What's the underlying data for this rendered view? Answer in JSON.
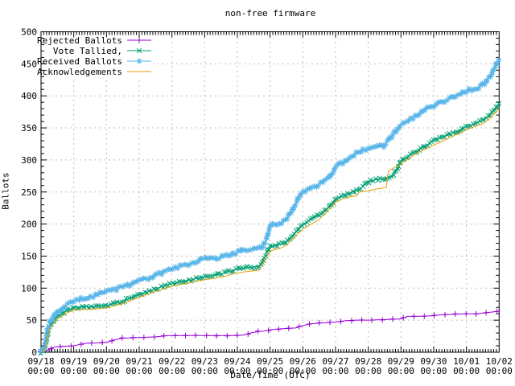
{
  "chart_data": {
    "type": "line",
    "title": "non-free firmware",
    "xlabel": "Date/Time (UTC)",
    "ylabel": "Ballots",
    "ylim": [
      0,
      500
    ],
    "y_tick_step": 50,
    "grid": true,
    "legend_position": "top-left",
    "x_unit": "days since first tick (one tick per day)",
    "x_ticks": [
      {
        "date": "09/18",
        "time": "00:00"
      },
      {
        "date": "09/19",
        "time": "00:00"
      },
      {
        "date": "09/20",
        "time": "00:00"
      },
      {
        "date": "09/21",
        "time": "00:00"
      },
      {
        "date": "09/22",
        "time": "00:00"
      },
      {
        "date": "09/23",
        "time": "00:00"
      },
      {
        "date": "09/24",
        "time": "00:00"
      },
      {
        "date": "09/25",
        "time": "00:00"
      },
      {
        "date": "09/26",
        "time": "00:00"
      },
      {
        "date": "09/27",
        "time": "00:00"
      },
      {
        "date": "09/28",
        "time": "00:00"
      },
      {
        "date": "09/29",
        "time": "00:00"
      },
      {
        "date": "09/30",
        "time": "00:00"
      },
      {
        "date": "10/01",
        "time": "00:00"
      },
      {
        "date": "10/02",
        "time": "00:00"
      }
    ],
    "series": [
      {
        "name": "Rejected Ballots",
        "color": "#9400d3",
        "marker": "plus",
        "points": [
          [
            0,
            0
          ],
          [
            0.15,
            1
          ],
          [
            0.25,
            5
          ],
          [
            0.4,
            8
          ],
          [
            0.6,
            9
          ],
          [
            1,
            10
          ],
          [
            1.1,
            11
          ],
          [
            1.25,
            13
          ],
          [
            1.4,
            14
          ],
          [
            2,
            15
          ],
          [
            2.1,
            17
          ],
          [
            2.3,
            20
          ],
          [
            2.5,
            22
          ],
          [
            3,
            23
          ],
          [
            3.5,
            24
          ],
          [
            3.7,
            25
          ],
          [
            3.95,
            26
          ],
          [
            5,
            26
          ],
          [
            6,
            26
          ],
          [
            6.2,
            27
          ],
          [
            6.4,
            30
          ],
          [
            6.6,
            32
          ],
          [
            6.8,
            33
          ],
          [
            7,
            35
          ],
          [
            7.2,
            36
          ],
          [
            7.5,
            37
          ],
          [
            7.8,
            38
          ],
          [
            7.95,
            41
          ],
          [
            8.05,
            42
          ],
          [
            8.2,
            44
          ],
          [
            8.4,
            45
          ],
          [
            9,
            47
          ],
          [
            9.3,
            49
          ],
          [
            9.6,
            50
          ],
          [
            10,
            50
          ],
          [
            10.5,
            51
          ],
          [
            11,
            52
          ],
          [
            11.1,
            54
          ],
          [
            11.2,
            56
          ],
          [
            11.5,
            56
          ],
          [
            12,
            57
          ],
          [
            12.15,
            58
          ],
          [
            12.5,
            59
          ],
          [
            13,
            60
          ],
          [
            13.3,
            60
          ],
          [
            13.5,
            61
          ],
          [
            13.65,
            62
          ],
          [
            14,
            64
          ]
        ]
      },
      {
        "name": "Vote Tallied,",
        "color": "#009e73",
        "marker": "cross",
        "points": [
          [
            0,
            0
          ],
          [
            0.1,
            4
          ],
          [
            0.25,
            40
          ],
          [
            0.5,
            56
          ],
          [
            0.75,
            64
          ],
          [
            1,
            70
          ],
          [
            1.5,
            71
          ],
          [
            2,
            73
          ],
          [
            2.25,
            76
          ],
          [
            2.5,
            80
          ],
          [
            2.75,
            85
          ],
          [
            3,
            90
          ],
          [
            3.25,
            94
          ],
          [
            3.5,
            99
          ],
          [
            3.75,
            103
          ],
          [
            4,
            107
          ],
          [
            4.25,
            110
          ],
          [
            4.5,
            112
          ],
          [
            4.75,
            115
          ],
          [
            5,
            118
          ],
          [
            5.25,
            120
          ],
          [
            5.5,
            122
          ],
          [
            5.75,
            126
          ],
          [
            6,
            130
          ],
          [
            6.3,
            132
          ],
          [
            6.65,
            134
          ],
          [
            6.8,
            145
          ],
          [
            7,
            165
          ],
          [
            7.3,
            168
          ],
          [
            7.5,
            172
          ],
          [
            7.75,
            186
          ],
          [
            8,
            200
          ],
          [
            8.25,
            207
          ],
          [
            8.5,
            214
          ],
          [
            8.75,
            224
          ],
          [
            9,
            238
          ],
          [
            9.25,
            244
          ],
          [
            9.5,
            250
          ],
          [
            9.75,
            255
          ],
          [
            10,
            266
          ],
          [
            10.2,
            269
          ],
          [
            10.5,
            271
          ],
          [
            10.75,
            276
          ],
          [
            10.9,
            288
          ],
          [
            11,
            298
          ],
          [
            11.25,
            307
          ],
          [
            11.5,
            314
          ],
          [
            11.75,
            322
          ],
          [
            12,
            330
          ],
          [
            12.25,
            336
          ],
          [
            12.5,
            340
          ],
          [
            12.75,
            345
          ],
          [
            13,
            352
          ],
          [
            13.25,
            356
          ],
          [
            13.5,
            362
          ],
          [
            13.7,
            370
          ],
          [
            13.85,
            378
          ],
          [
            14,
            388
          ]
        ]
      },
      {
        "name": "Received Ballots",
        "color": "#56b4e9",
        "marker": "asterisk",
        "points": [
          [
            0,
            0
          ],
          [
            0.1,
            5
          ],
          [
            0.2,
            35
          ],
          [
            0.3,
            50
          ],
          [
            0.5,
            64
          ],
          [
            0.75,
            73
          ],
          [
            1,
            80
          ],
          [
            1.25,
            83
          ],
          [
            1.5,
            86
          ],
          [
            1.75,
            90
          ],
          [
            2,
            95
          ],
          [
            2.25,
            98
          ],
          [
            2.5,
            102
          ],
          [
            2.75,
            106
          ],
          [
            3,
            111
          ],
          [
            3.25,
            115
          ],
          [
            3.5,
            120
          ],
          [
            3.75,
            125
          ],
          [
            4,
            130
          ],
          [
            4.25,
            134
          ],
          [
            4.5,
            137
          ],
          [
            4.75,
            142
          ],
          [
            4.9,
            145
          ],
          [
            5.4,
            146
          ],
          [
            5.6,
            150
          ],
          [
            5.9,
            154
          ],
          [
            6.1,
            158
          ],
          [
            6.3,
            160
          ],
          [
            6.75,
            163
          ],
          [
            6.85,
            172
          ],
          [
            7.05,
            200
          ],
          [
            7.35,
            201
          ],
          [
            7.5,
            208
          ],
          [
            7.65,
            218
          ],
          [
            7.9,
            243
          ],
          [
            8,
            250
          ],
          [
            8.2,
            255
          ],
          [
            8.4,
            258
          ],
          [
            8.6,
            266
          ],
          [
            8.8,
            272
          ],
          [
            9,
            290
          ],
          [
            9.2,
            295
          ],
          [
            9.4,
            303
          ],
          [
            9.6,
            310
          ],
          [
            9.8,
            314
          ],
          [
            10,
            317
          ],
          [
            10.2,
            320
          ],
          [
            10.5,
            322
          ],
          [
            10.6,
            330
          ],
          [
            10.8,
            342
          ],
          [
            10.95,
            352
          ],
          [
            11,
            355
          ],
          [
            11.25,
            362
          ],
          [
            11.5,
            370
          ],
          [
            11.75,
            378
          ],
          [
            12,
            385
          ],
          [
            12.25,
            390
          ],
          [
            12.5,
            396
          ],
          [
            12.75,
            402
          ],
          [
            13,
            408
          ],
          [
            13.2,
            410
          ],
          [
            13.4,
            414
          ],
          [
            13.55,
            420
          ],
          [
            13.7,
            430
          ],
          [
            13.85,
            442
          ],
          [
            14,
            457
          ]
        ]
      },
      {
        "name": "Acknowledgements",
        "color": "#e69f00",
        "marker": "none",
        "points": [
          [
            0,
            0
          ],
          [
            0.12,
            3
          ],
          [
            0.25,
            36
          ],
          [
            0.5,
            52
          ],
          [
            0.75,
            60
          ],
          [
            1,
            66
          ],
          [
            1.5,
            67
          ],
          [
            2,
            69
          ],
          [
            2.5,
            76
          ],
          [
            3,
            86
          ],
          [
            3.5,
            95
          ],
          [
            4,
            103
          ],
          [
            4.5,
            108
          ],
          [
            5,
            113
          ],
          [
            5.5,
            117
          ],
          [
            6,
            124
          ],
          [
            6.3,
            126
          ],
          [
            6.65,
            128
          ],
          [
            6.8,
            140
          ],
          [
            7,
            158
          ],
          [
            7.3,
            162
          ],
          [
            7.5,
            167
          ],
          [
            7.75,
            180
          ],
          [
            8,
            192
          ],
          [
            8.5,
            207
          ],
          [
            8.75,
            220
          ],
          [
            9,
            234
          ],
          [
            9.25,
            240
          ],
          [
            9.5,
            243
          ],
          [
            9.65,
            244
          ],
          [
            9.72,
            250
          ],
          [
            10,
            252
          ],
          [
            10.3,
            255
          ],
          [
            10.55,
            257
          ],
          [
            10.62,
            283
          ],
          [
            11,
            294
          ],
          [
            11.5,
            311
          ],
          [
            12,
            323
          ],
          [
            12.5,
            335
          ],
          [
            13,
            347
          ],
          [
            13.5,
            357
          ],
          [
            13.7,
            364
          ],
          [
            13.85,
            372
          ],
          [
            14,
            380
          ]
        ]
      }
    ]
  }
}
